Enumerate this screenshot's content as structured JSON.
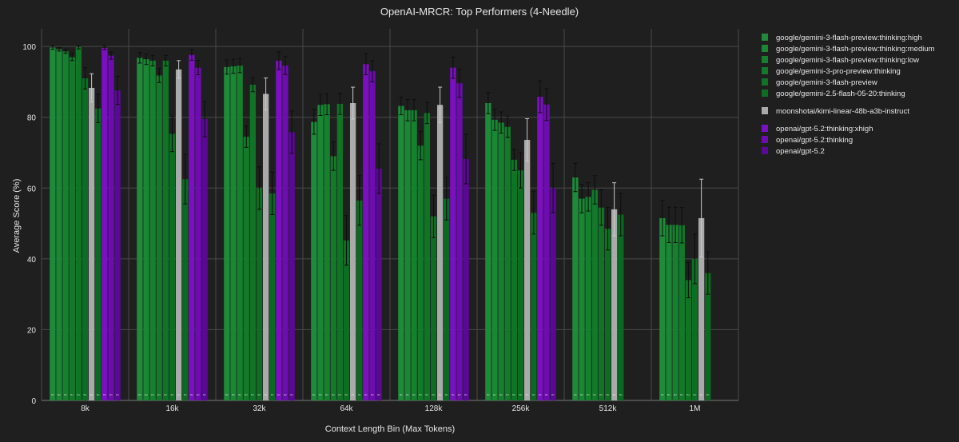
{
  "chart_data": {
    "type": "bar",
    "title": "OpenAI-MRCR: Top Performers (4-Needle)",
    "xlabel": "Context Length Bin (Max Tokens)",
    "ylabel": "Average Score (%)",
    "ylim": [
      0,
      105
    ],
    "y_ticks": [
      0,
      20,
      40,
      60,
      80,
      100
    ],
    "grid": true,
    "legend_position": "right",
    "bar_label": "n=",
    "categories": [
      "8k",
      "16k",
      "32k",
      "64k",
      "128k",
      "256k",
      "512k",
      "1M"
    ],
    "series": [
      {
        "name": "google/gemini-3-flash-preview:thinking:high",
        "color": "#1e8a3a",
        "values": [
          99.7,
          96.8,
          94.2,
          78.7,
          83.2,
          84.0,
          63.0,
          51.5
        ],
        "errors": [
          0.5,
          1.5,
          2.0,
          3.5,
          2.5,
          3.0,
          4.0,
          5.0
        ]
      },
      {
        "name": "google/gemini-3-flash-preview:thinking:medium",
        "color": "#198734",
        "values": [
          99.2,
          96.4,
          94.4,
          83.5,
          82.0,
          79.3,
          57.0,
          49.6
        ],
        "errors": [
          0.5,
          1.5,
          2.0,
          3.0,
          3.0,
          3.0,
          4.0,
          5.0
        ]
      },
      {
        "name": "google/gemini-3-flash-preview:thinking:low",
        "color": "#15812f",
        "values": [
          98.6,
          96.0,
          94.6,
          83.7,
          82.0,
          78.5,
          57.5,
          49.6
        ],
        "errors": [
          0.5,
          1.5,
          2.0,
          3.0,
          3.0,
          3.0,
          4.0,
          5.0
        ]
      },
      {
        "name": "google/gemini-3-pro-preview:thinking",
        "color": "#127a2a",
        "values": [
          97.0,
          91.8,
          74.5,
          69.0,
          72.0,
          77.3,
          59.5,
          49.5
        ],
        "errors": [
          1.0,
          2.0,
          3.0,
          4.0,
          4.0,
          3.0,
          4.0,
          5.0
        ]
      },
      {
        "name": "google/gemini-3-flash-preview",
        "color": "#0f7426",
        "values": [
          99.8,
          96.0,
          89.2,
          83.8,
          81.2,
          68.0,
          54.5,
          34.0
        ],
        "errors": [
          0.5,
          1.5,
          2.0,
          3.0,
          3.0,
          3.0,
          5.0,
          5.0
        ]
      },
      {
        "name": "google/gemini-2.5-flash-05-20:thinking",
        "color": "#0c6e22",
        "values": [
          91.0,
          75.3,
          60.0,
          45.2,
          52.0,
          65.0,
          48.5,
          40.0
        ],
        "errors": [
          3.0,
          5.0,
          6.0,
          7.0,
          6.0,
          5.0,
          6.0,
          7.0
        ]
      },
      {
        "name": "moonshotai/kimi-linear-48b-a3b-instruct",
        "color": "#aaaaaa",
        "values": [
          88.3,
          93.5,
          86.6,
          84.0,
          83.5,
          73.6,
          54.0,
          51.5
        ],
        "errors": [
          4.0,
          2.5,
          4.5,
          4.5,
          5.0,
          6.0,
          7.5,
          11.0
        ]
      },
      {
        "name": "google/gemini-2.5-flash-05-20:thinking",
        "color": "#0a6a20",
        "values": [
          82.5,
          62.5,
          58.5,
          56.5,
          57.0,
          53.0,
          52.5,
          36.0
        ],
        "errors": [
          4.0,
          7.0,
          6.0,
          7.0,
          6.0,
          6.0,
          6.0,
          6.0
        ]
      },
      {
        "name": "openai/gpt-5.2:thinking:xhigh",
        "color": "#7a10c0",
        "values": [
          99.6,
          97.6,
          96.0,
          95.0,
          94.0,
          85.8,
          null,
          null
        ],
        "errors": [
          0.5,
          1.5,
          2.5,
          3.0,
          3.0,
          4.5,
          0,
          0
        ]
      },
      {
        "name": "openai/gpt-5.2:thinking",
        "color": "#6d0cb0",
        "values": [
          97.4,
          94.0,
          94.6,
          93.0,
          89.6,
          83.6,
          null,
          null
        ],
        "errors": [
          1.0,
          2.0,
          2.5,
          3.0,
          4.0,
          4.5,
          0,
          0
        ]
      },
      {
        "name": "openai/gpt-5.2",
        "color": "#5a0896",
        "values": [
          87.6,
          79.5,
          75.8,
          65.5,
          68.2,
          60.0,
          null,
          null
        ],
        "errors": [
          4.0,
          5.0,
          6.0,
          7.0,
          7.0,
          7.0,
          0,
          0
        ]
      }
    ],
    "legend": {
      "groups": [
        [
          {
            "name": "google/gemini-3-flash-preview:thinking:high",
            "color": "#1e8a3a"
          },
          {
            "name": "google/gemini-3-flash-preview:thinking:medium",
            "color": "#198734"
          },
          {
            "name": "google/gemini-3-flash-preview:thinking:low",
            "color": "#15812f"
          },
          {
            "name": "google/gemini-3-pro-preview:thinking",
            "color": "#127a2a"
          },
          {
            "name": "google/gemini-3-flash-preview",
            "color": "#0f7426"
          },
          {
            "name": "google/gemini-2.5-flash-05-20:thinking",
            "color": "#0c6e22"
          }
        ],
        [
          {
            "name": "moonshotai/kimi-linear-48b-a3b-instruct",
            "color": "#aaaaaa"
          }
        ],
        [
          {
            "name": "openai/gpt-5.2:thinking:xhigh",
            "color": "#7a10c0"
          },
          {
            "name": "openai/gpt-5.2:thinking",
            "color": "#6d0cb0"
          },
          {
            "name": "openai/gpt-5.2",
            "color": "#5a0896"
          }
        ]
      ]
    }
  }
}
